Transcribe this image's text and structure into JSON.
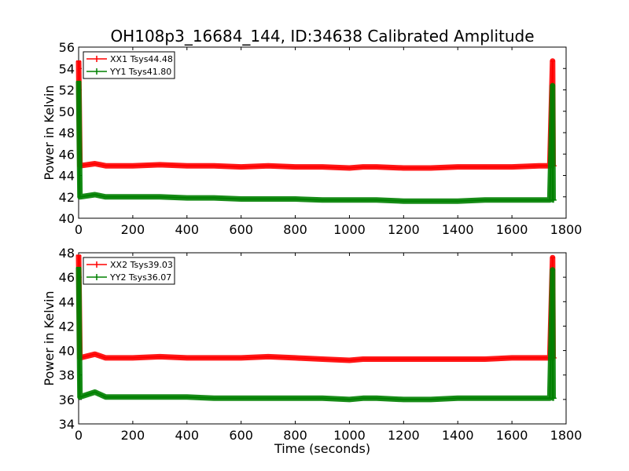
{
  "chart_data": {
    "title": "OH108p3_16684_144, ID:34638 Calibrated Amplitude",
    "colors": {
      "xx": "#ff0000",
      "yy": "#008000"
    },
    "x_ticks": [
      0,
      200,
      400,
      600,
      800,
      1000,
      1200,
      1400,
      1600,
      1800
    ],
    "panels": [
      {
        "type": "line",
        "xlim": [
          0,
          1800
        ],
        "ylim": [
          40,
          56
        ],
        "yticks": [
          40,
          42,
          44,
          46,
          48,
          50,
          52,
          54,
          56
        ],
        "ylabel": "Power in Kelvin",
        "xlabel": "",
        "legend_position": "upper-left",
        "series": [
          {
            "name": "XX1 Tsys44.48",
            "color": "#ff0000",
            "x": [
              0,
              5,
              60,
              100,
              200,
              300,
              400,
              500,
              600,
              700,
              800,
              900,
              1000,
              1050,
              1100,
              1200,
              1300,
              1400,
              1500,
              1600,
              1700,
              1740,
              1750,
              1752,
              1756
            ],
            "y": [
              54.7,
              44.9,
              45.1,
              44.9,
              44.9,
              45.0,
              44.9,
              44.9,
              44.8,
              44.9,
              44.8,
              44.8,
              44.7,
              44.8,
              44.8,
              44.7,
              44.7,
              44.8,
              44.8,
              44.8,
              44.9,
              44.9,
              54.7,
              44.9,
              44.9
            ]
          },
          {
            "name": "YY1 Tsys41.80",
            "color": "#008000",
            "x": [
              0,
              5,
              60,
              100,
              200,
              300,
              400,
              500,
              600,
              700,
              800,
              900,
              1000,
              1050,
              1100,
              1200,
              1300,
              1400,
              1500,
              1600,
              1700,
              1740,
              1750,
              1752,
              1756
            ],
            "y": [
              52.8,
              42.0,
              42.2,
              42.0,
              42.0,
              42.0,
              41.9,
              41.9,
              41.8,
              41.8,
              41.8,
              41.7,
              41.7,
              41.7,
              41.7,
              41.6,
              41.6,
              41.6,
              41.7,
              41.7,
              41.7,
              41.7,
              52.4,
              41.7,
              41.7
            ]
          }
        ]
      },
      {
        "type": "line",
        "xlim": [
          0,
          1800
        ],
        "ylim": [
          34,
          48
        ],
        "yticks": [
          34,
          36,
          38,
          40,
          42,
          44,
          46,
          48
        ],
        "ylabel": "Power in Kelvin",
        "xlabel": "Time (seconds)",
        "legend_position": "upper-left",
        "series": [
          {
            "name": "XX2 Tsys39.03",
            "color": "#ff0000",
            "x": [
              0,
              5,
              60,
              100,
              200,
              300,
              400,
              500,
              600,
              700,
              800,
              900,
              1000,
              1050,
              1100,
              1200,
              1300,
              1400,
              1500,
              1600,
              1700,
              1740,
              1750,
              1752,
              1756
            ],
            "y": [
              47.8,
              39.4,
              39.7,
              39.4,
              39.4,
              39.5,
              39.4,
              39.4,
              39.4,
              39.5,
              39.4,
              39.3,
              39.2,
              39.3,
              39.3,
              39.3,
              39.3,
              39.3,
              39.3,
              39.4,
              39.4,
              39.4,
              47.6,
              39.4,
              39.4
            ]
          },
          {
            "name": "YY2 Tsys36.07",
            "color": "#008000",
            "x": [
              0,
              5,
              60,
              100,
              200,
              300,
              400,
              500,
              600,
              700,
              800,
              900,
              1000,
              1050,
              1100,
              1200,
              1300,
              1400,
              1500,
              1600,
              1700,
              1740,
              1750,
              1752,
              1756
            ],
            "y": [
              46.8,
              36.2,
              36.6,
              36.2,
              36.2,
              36.2,
              36.2,
              36.1,
              36.1,
              36.1,
              36.1,
              36.1,
              36.0,
              36.1,
              36.1,
              36.0,
              36.0,
              36.1,
              36.1,
              36.1,
              36.1,
              36.1,
              46.6,
              36.1,
              36.1
            ]
          }
        ]
      }
    ]
  }
}
